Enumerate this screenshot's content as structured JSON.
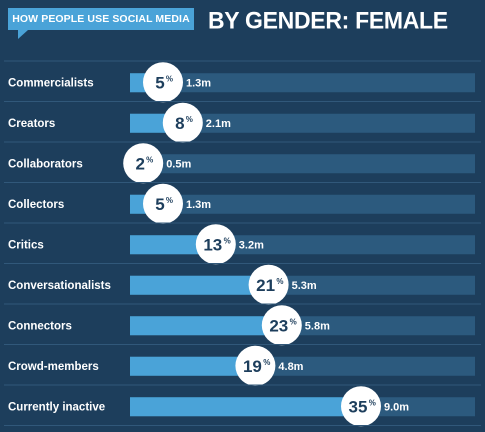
{
  "header": {
    "tag": "HOW PEOPLE USE SOCIAL MEDIA",
    "title": "BY GENDER: FEMALE"
  },
  "colors": {
    "background": "#1d3e5c",
    "track": "#2c5a7e",
    "bar": "#4aa3d8",
    "divider": "#31587a",
    "circle": "#ffffff"
  },
  "chart_data": {
    "type": "bar",
    "orientation": "horizontal",
    "categories": [
      "Commercialists",
      "Creators",
      "Collaborators",
      "Collectors",
      "Critics",
      "Conversationalists",
      "Connectors",
      "Crowd-members",
      "Currently inactive"
    ],
    "series": [
      {
        "values": [
          5,
          8,
          2,
          5,
          13,
          21,
          23,
          19,
          35
        ],
        "value_labels": [
          "5",
          "8",
          "2",
          "5",
          "13",
          "21",
          "23",
          "19",
          "35"
        ],
        "secondary_labels": [
          "1.3m",
          "2.1m",
          "0.5m",
          "1.3m",
          "3.2m",
          "5.3m",
          "5.8m",
          "4.8m",
          "9.0m"
        ]
      }
    ],
    "percent_sign": "%",
    "xlim": [
      0,
      40
    ]
  }
}
